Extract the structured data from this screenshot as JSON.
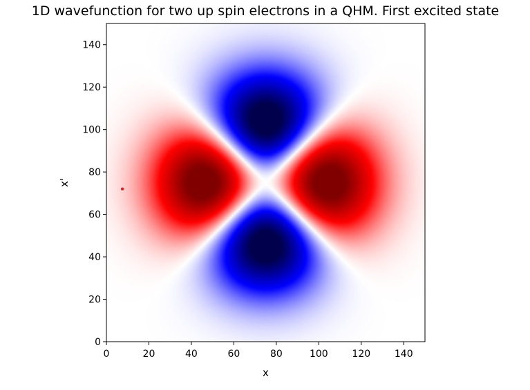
{
  "chart_data": {
    "type": "heatmap",
    "title": "1D wavefunction for two up spin electrons in a QHM. First excited state",
    "xlabel": "x",
    "ylabel": "x'",
    "xlim": [
      0,
      150
    ],
    "ylim": [
      150,
      0
    ],
    "xticks": [
      "0",
      "20",
      "40",
      "60",
      "80",
      "100",
      "120",
      "140"
    ],
    "yticks": [
      "0",
      "20",
      "40",
      "60",
      "80",
      "100",
      "120",
      "140"
    ],
    "colormap": "seismic",
    "colors": {
      "negative": "#0000ff",
      "zero": "#ffffff",
      "positive": "#ff0000",
      "extreme_positive": "#7f0000",
      "extreme_negative": "#00004c"
    },
    "lobes": [
      {
        "sign": "positive",
        "x": 51,
        "y": 77
      },
      {
        "sign": "positive",
        "x": 98,
        "y": 73
      },
      {
        "sign": "negative",
        "x": 77,
        "y": 51
      },
      {
        "sign": "negative",
        "x": 73,
        "y": 98
      }
    ],
    "marker": {
      "x": 7.5,
      "y": 72,
      "color": "#d62728"
    },
    "grid": false
  }
}
